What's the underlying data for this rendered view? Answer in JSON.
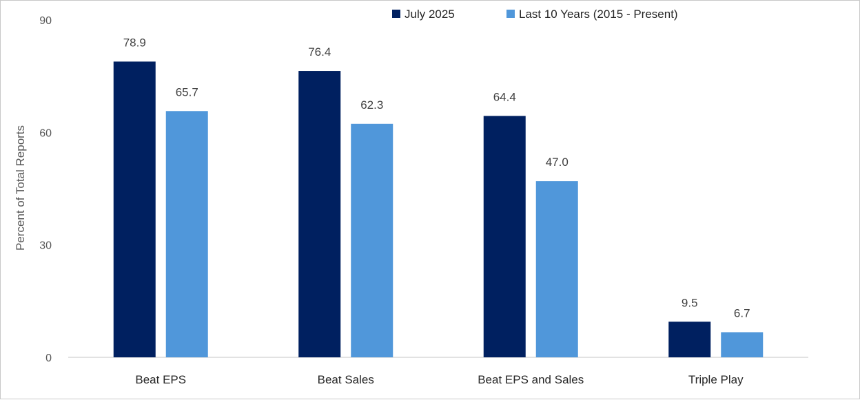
{
  "chart_data": {
    "type": "bar",
    "categories": [
      "Beat EPS",
      "Beat Sales",
      "Beat EPS and Sales",
      "Triple Play"
    ],
    "series": [
      {
        "name": "July 2025",
        "values": [
          78.9,
          76.4,
          64.4,
          9.5
        ],
        "color": "#002060"
      },
      {
        "name": "Last 10 Years (2015 - Present)",
        "values": [
          65.7,
          62.3,
          47.0,
          6.7
        ],
        "color": "#5097DA"
      }
    ],
    "data_labels": [
      [
        "78.9",
        "76.4",
        "64.4",
        "9.5"
      ],
      [
        "65.7",
        "62.3",
        "47.0",
        "6.7"
      ]
    ],
    "title": "",
    "xlabel": "",
    "ylabel": "Percent of Total Reports",
    "ylim": [
      0,
      90
    ],
    "yticks": [
      "0",
      "30",
      "60",
      "90"
    ],
    "grid": false,
    "legend_position": "top-right"
  }
}
